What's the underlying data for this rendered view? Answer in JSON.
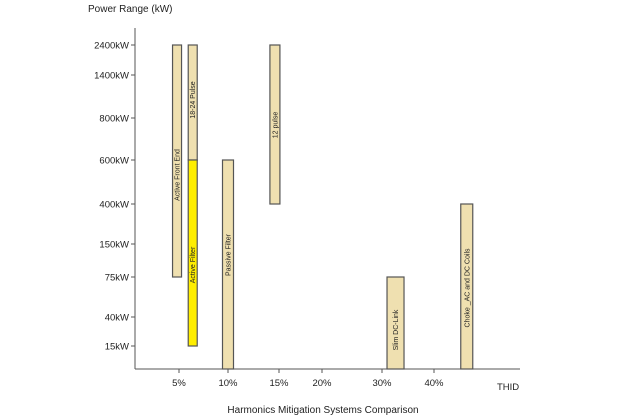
{
  "chart_data": {
    "type": "bar",
    "subtype": "floating-range",
    "title": "Harmonics Mitigation Systems Comparison",
    "ylabel": "Power Range (kW)",
    "xlabel": "THID",
    "y_ticks": [
      "2400kW",
      "1400kW",
      "800kW",
      "600kW",
      "400kW",
      "150kW",
      "75kW",
      "40kW",
      "15kW"
    ],
    "y_tick_values": [
      2400,
      1400,
      800,
      600,
      400,
      150,
      75,
      40,
      15
    ],
    "x_ticks": [
      "5%",
      "10%",
      "15%",
      "20%",
      "30%",
      "40%"
    ],
    "x_tick_values": [
      5,
      10,
      15,
      20,
      30,
      40
    ],
    "grid": false,
    "colors": {
      "range": "#efe0b0",
      "highlight": "#ffee00",
      "border": "#555555"
    },
    "series": [
      {
        "name": "Active Front End",
        "thid": 4.8,
        "kw_min": 75,
        "kw_max": 2400,
        "color": "#efe0b0"
      },
      {
        "name": "18-24 Pulse",
        "thid": 6.4,
        "kw_min": 600,
        "kw_max": 2400,
        "color": "#efe0b0"
      },
      {
        "name": "Active Filter",
        "thid": 6.4,
        "kw_min": 15,
        "kw_max": 600,
        "color": "#ffee00"
      },
      {
        "name": "Passive Filter",
        "thid": 10,
        "kw_min": 0,
        "kw_max": 600,
        "color": "#efe0b0"
      },
      {
        "name": "12 pulse",
        "thid": 14.6,
        "kw_min": 400,
        "kw_max": 2400,
        "color": "#efe0b0"
      },
      {
        "name": "Slim DC-Link",
        "thid": 32.6,
        "kw_min": 0,
        "kw_max": 75,
        "color": "#efe0b0"
      },
      {
        "name": "Choke _AC and DC Coils",
        "thid": 46.3,
        "kw_min": 0,
        "kw_max": 400,
        "color": "#efe0b0"
      }
    ]
  }
}
